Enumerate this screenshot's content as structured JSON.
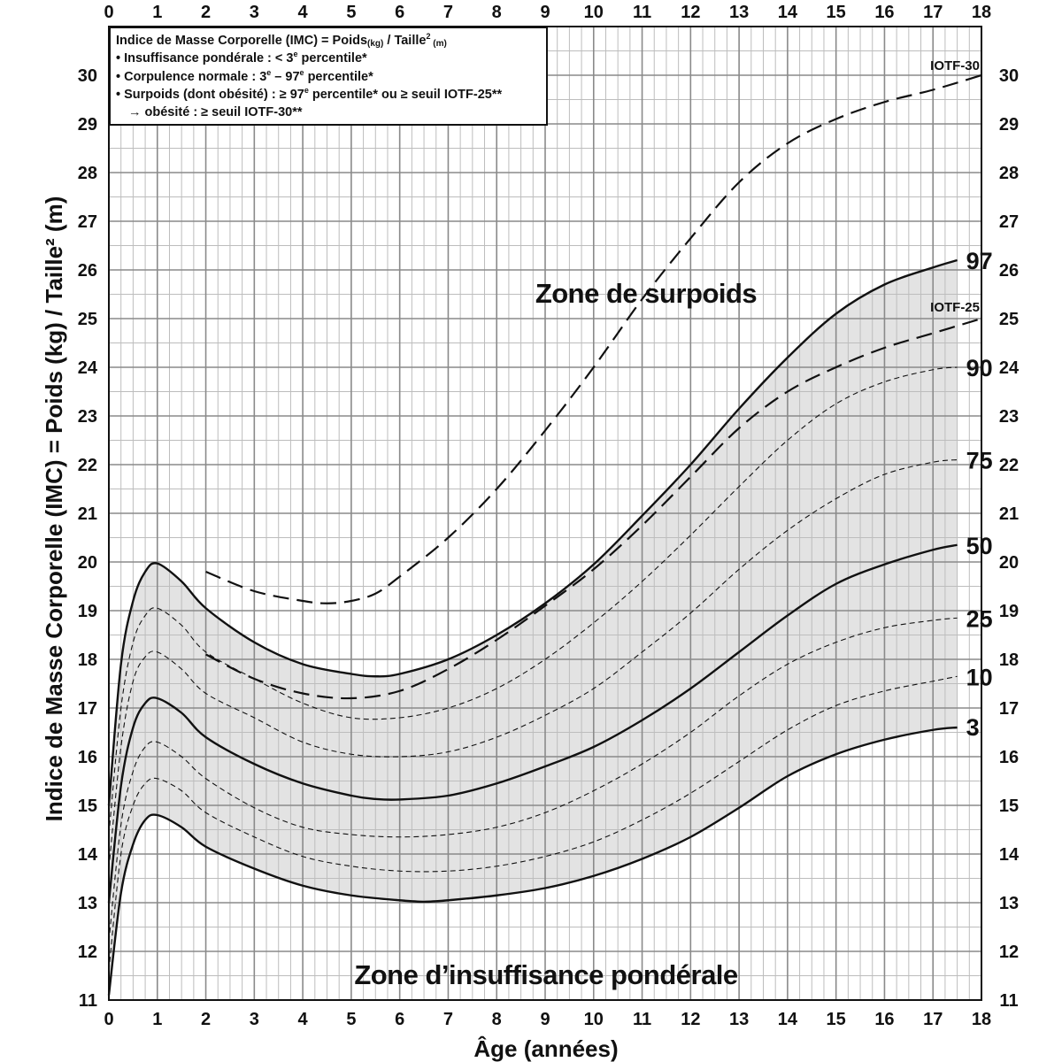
{
  "chart_data": {
    "type": "line",
    "xlabel": "Âge (années)",
    "ylabel": "Indice de Masse Corporelle (IMC) = Poids (kg) / Taille² (m)",
    "xlim": [
      0,
      18
    ],
    "ylim": [
      11,
      31
    ],
    "x_ticks": [
      "0",
      "1",
      "2",
      "3",
      "4",
      "5",
      "6",
      "7",
      "8",
      "9",
      "10",
      "11",
      "12",
      "13",
      "14",
      "15",
      "16",
      "17",
      "18"
    ],
    "y_ticks": [
      "11",
      "12",
      "13",
      "14",
      "15",
      "16",
      "17",
      "18",
      "19",
      "20",
      "21",
      "22",
      "23",
      "24",
      "25",
      "26",
      "27",
      "28",
      "29",
      "30"
    ],
    "grid": true,
    "shaded_band": "between 3rd and 97th percentile",
    "shade_color": "#e3e3e3",
    "zones": {
      "overweight": "Zone de surpoids",
      "underweight": "Zone d’insuffisance pondérale"
    },
    "legend": {
      "placement": "top-left",
      "lines": [
        "Indice de Masse Corporelle (IMC) = Poids",
        "(kg)",
        " / Taille",
        "2",
        " (m)",
        "• Insuffisance pondérale : < 3",
        "e",
        " percentile*",
        "• Corpulence normale : 3",
        " – 97",
        "• Surpoids (dont obésité) : ≥ 97",
        " percentile* ou ≥ seuil IOTF-25**",
        "→ obésité : ≥ seuil IOTF-30**"
      ]
    },
    "series": [
      {
        "name": "3",
        "style": "solid",
        "x": [
          0,
          0.25,
          0.5,
          0.75,
          1,
          1.5,
          2,
          3,
          4,
          5,
          6,
          6.5,
          7,
          8,
          9,
          10,
          11,
          12,
          13,
          14,
          15,
          16,
          17,
          17.5
        ],
        "y": [
          11.1,
          13.2,
          14.2,
          14.7,
          14.8,
          14.55,
          14.15,
          13.7,
          13.35,
          13.15,
          13.05,
          13.02,
          13.05,
          13.15,
          13.3,
          13.55,
          13.9,
          14.35,
          14.95,
          15.6,
          16.05,
          16.35,
          16.55,
          16.6
        ]
      },
      {
        "name": "10",
        "style": "dashed",
        "x": [
          0,
          0.25,
          0.5,
          0.75,
          1,
          1.5,
          2,
          3,
          4,
          5,
          6,
          7,
          8,
          9,
          10,
          11,
          12,
          13,
          14,
          15,
          16,
          17,
          17.5
        ],
        "y": [
          11.6,
          14.0,
          15.0,
          15.45,
          15.55,
          15.3,
          14.85,
          14.35,
          13.95,
          13.75,
          13.65,
          13.65,
          13.75,
          13.95,
          14.25,
          14.7,
          15.25,
          15.9,
          16.55,
          17.05,
          17.35,
          17.55,
          17.65
        ]
      },
      {
        "name": "25",
        "style": "dashed",
        "x": [
          0,
          0.25,
          0.5,
          0.75,
          1,
          1.5,
          2,
          3,
          4,
          5,
          6,
          7,
          8,
          9,
          10,
          11,
          12,
          13,
          14,
          15,
          16,
          17,
          17.5
        ],
        "y": [
          12.2,
          14.6,
          15.7,
          16.2,
          16.3,
          16.0,
          15.55,
          14.95,
          14.55,
          14.4,
          14.35,
          14.4,
          14.55,
          14.85,
          15.3,
          15.85,
          16.5,
          17.25,
          17.9,
          18.35,
          18.65,
          18.8,
          18.85
        ]
      },
      {
        "name": "50",
        "style": "solid",
        "x": [
          0,
          0.25,
          0.5,
          0.75,
          1,
          1.5,
          2,
          3,
          4,
          5,
          5.5,
          6,
          7,
          8,
          9,
          10,
          11,
          12,
          13,
          14,
          15,
          16,
          17,
          17.5
        ],
        "y": [
          13.0,
          15.4,
          16.6,
          17.1,
          17.2,
          16.9,
          16.4,
          15.85,
          15.45,
          15.2,
          15.13,
          15.12,
          15.2,
          15.45,
          15.8,
          16.2,
          16.75,
          17.4,
          18.15,
          18.9,
          19.55,
          19.95,
          20.25,
          20.35
        ]
      },
      {
        "name": "75",
        "style": "dashed",
        "x": [
          0,
          0.25,
          0.5,
          0.75,
          1,
          1.5,
          2,
          3,
          4,
          5,
          6,
          7,
          8,
          9,
          10,
          11,
          12,
          13,
          14,
          15,
          16,
          17,
          17.5
        ],
        "y": [
          13.7,
          16.2,
          17.55,
          18.05,
          18.15,
          17.8,
          17.3,
          16.8,
          16.3,
          16.05,
          16.0,
          16.1,
          16.4,
          16.85,
          17.4,
          18.15,
          18.95,
          19.85,
          20.65,
          21.3,
          21.8,
          22.05,
          22.1
        ]
      },
      {
        "name": "90",
        "style": "dashed",
        "x": [
          0,
          0.25,
          0.5,
          0.75,
          1,
          1.5,
          2,
          3,
          4,
          5,
          6,
          7,
          8,
          9,
          10,
          11,
          12,
          13,
          14,
          15,
          16,
          17,
          17.5
        ],
        "y": [
          14.4,
          17.0,
          18.35,
          18.9,
          19.05,
          18.7,
          18.15,
          17.6,
          17.1,
          16.8,
          16.8,
          17.0,
          17.4,
          18.0,
          18.75,
          19.6,
          20.55,
          21.55,
          22.5,
          23.25,
          23.7,
          23.95,
          24.0
        ]
      },
      {
        "name": "97",
        "style": "solid",
        "x": [
          0,
          0.25,
          0.5,
          0.75,
          1,
          1.5,
          2,
          3,
          4,
          5,
          5.5,
          6,
          7,
          8,
          9,
          10,
          11,
          12,
          13,
          14,
          15,
          16,
          17,
          17.5
        ],
        "y": [
          15.0,
          17.9,
          19.2,
          19.8,
          19.97,
          19.6,
          19.05,
          18.35,
          17.9,
          17.7,
          17.65,
          17.7,
          18.0,
          18.5,
          19.15,
          19.95,
          20.95,
          22.0,
          23.15,
          24.2,
          25.1,
          25.7,
          26.05,
          26.2
        ]
      },
      {
        "name": "IOTF-25",
        "style": "longdash",
        "x": [
          2,
          3,
          4,
          5,
          6,
          7,
          8,
          9,
          10,
          11,
          12,
          13,
          14,
          15,
          16,
          17,
          18
        ],
        "y": [
          18.1,
          17.6,
          17.3,
          17.2,
          17.35,
          17.8,
          18.4,
          19.1,
          19.85,
          20.75,
          21.75,
          22.75,
          23.5,
          24.0,
          24.4,
          24.7,
          25.0
        ]
      },
      {
        "name": "IOTF-30",
        "style": "longdash",
        "x": [
          2,
          3,
          4,
          4.5,
          5,
          5.5,
          6,
          7,
          8,
          9,
          10,
          11,
          12,
          13,
          14,
          15,
          16,
          17,
          18
        ],
        "y": [
          19.8,
          19.4,
          19.2,
          19.15,
          19.2,
          19.35,
          19.7,
          20.5,
          21.5,
          22.7,
          24.0,
          25.4,
          26.65,
          27.8,
          28.6,
          29.1,
          29.45,
          29.7,
          30.0
        ]
      }
    ]
  },
  "colors": {
    "shade": "#e3e3e3",
    "line": "#111111",
    "grid_major": "#8a8a8a",
    "grid_minor": "#bdbdbd"
  }
}
